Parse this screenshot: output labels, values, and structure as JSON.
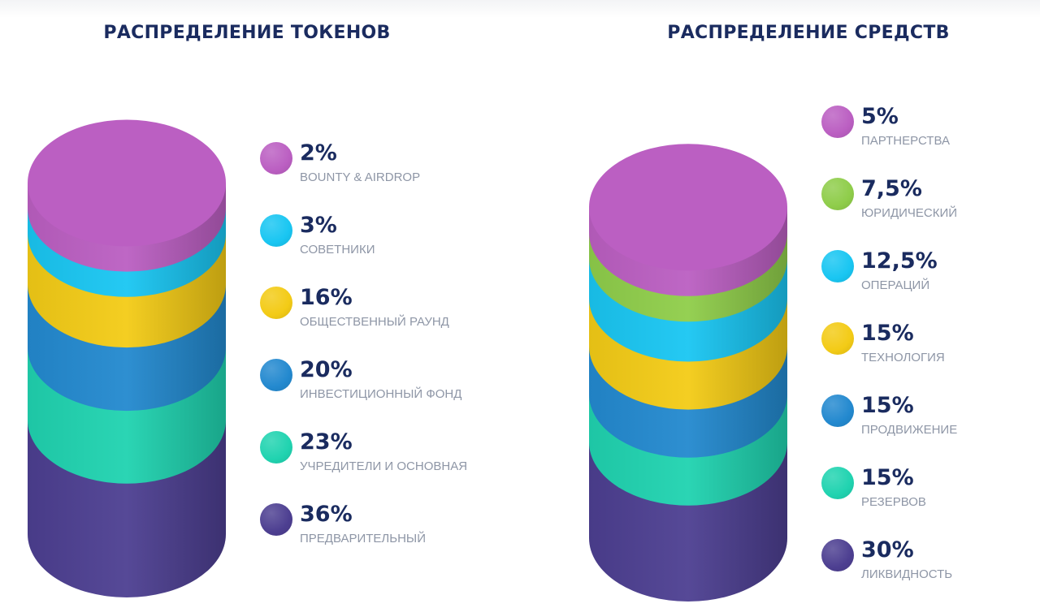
{
  "chart_data": [
    {
      "type": "stacked-cylinder",
      "title": "РАСПРЕДЕЛЕНИЕ ТОКЕНОВ",
      "series": [
        {
          "value": 2,
          "value_label": "2%",
          "label": "BOUNTY & AIRDROP",
          "color": "#bb5fc2"
        },
        {
          "value": 3,
          "value_label": "3%",
          "label": "СОВЕТНИКИ",
          "color": "#19c6f2"
        },
        {
          "value": 16,
          "value_label": "16%",
          "label": "ОБЩЕСТВЕННЫЙ РАУНД",
          "color": "#f3cb16"
        },
        {
          "value": 20,
          "value_label": "20%",
          "label": "ИНВЕСТИЦИОННЫЙ ФОНД",
          "color": "#2389cf"
        },
        {
          "value": 23,
          "value_label": "23%",
          "label": "УЧРЕДИТЕЛИ И ОСНОВНАЯ",
          "color": "#20d3b0"
        },
        {
          "value": 36,
          "value_label": "36%",
          "label": "ПРЕДВАРИТЕЛЬНЫЙ",
          "color": "#4d3f91"
        }
      ]
    },
    {
      "type": "stacked-cylinder",
      "title": "РАСПРЕДЕЛЕНИЕ СРЕДСТВ",
      "series": [
        {
          "value": 5,
          "value_label": "5%",
          "label": "ПАРТНЕРСТВА",
          "color": "#bb5fc2"
        },
        {
          "value": 7.5,
          "value_label": "7,5%",
          "label": "ЮРИДИЧЕСКИЙ",
          "color": "#8fcd4a"
        },
        {
          "value": 12.5,
          "value_label": "12,5%",
          "label": "ОПЕРАЦИЙ",
          "color": "#19c6f2"
        },
        {
          "value": 15,
          "value_label": "15%",
          "label": "ТЕХНОЛОГИЯ",
          "color": "#f3cb16"
        },
        {
          "value": 15,
          "value_label": "15%",
          "label": "ПРОДВИЖЕНИЕ",
          "color": "#2389cf"
        },
        {
          "value": 15,
          "value_label": "15%",
          "label": "РЕЗЕРВОВ",
          "color": "#20d3b0"
        },
        {
          "value": 30,
          "value_label": "30%",
          "label": "ЛИКВИДНОСТЬ",
          "color": "#4d3f91"
        }
      ]
    }
  ]
}
